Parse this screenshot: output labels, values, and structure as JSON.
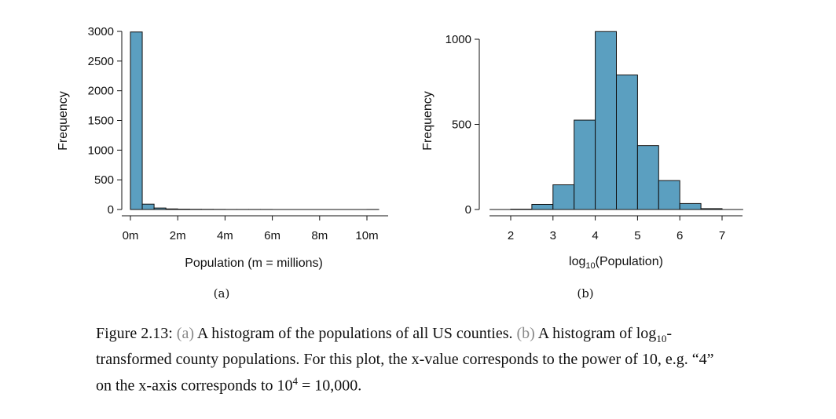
{
  "chart_data": [
    {
      "id": "a",
      "type": "bar",
      "panel_label": "(a)",
      "xlabel": "Population (m = millions)",
      "ylabel": "Frequency",
      "bar_color": "#5b9fc0",
      "bin_width": 0.5,
      "xlim": [
        0,
        10.5
      ],
      "ylim": [
        0,
        3000
      ],
      "x_ticks": [
        0,
        2,
        4,
        6,
        8,
        10
      ],
      "x_tick_labels": [
        "0m",
        "2m",
        "4m",
        "6m",
        "8m",
        "10m"
      ],
      "y_ticks": [
        0,
        500,
        1000,
        1500,
        2000,
        2500,
        3000
      ],
      "y_tick_labels": [
        "0",
        "500",
        "1000",
        "1500",
        "2000",
        "2500",
        "3000"
      ],
      "bins_start": [
        0,
        0.5,
        1.0,
        1.5,
        2.0,
        2.5,
        3.0,
        3.5,
        4.0,
        4.5,
        5.0,
        5.5,
        6.0,
        6.5,
        7.0,
        7.5,
        8.0,
        8.5,
        9.0,
        9.5,
        10.0
      ],
      "values": [
        2990,
        90,
        25,
        10,
        6,
        4,
        3,
        2,
        1,
        1,
        1,
        1,
        0,
        0,
        0,
        0,
        0,
        0,
        0,
        0,
        1
      ]
    },
    {
      "id": "b",
      "type": "bar",
      "panel_label": "(b)",
      "xlabel_main": "log",
      "xlabel_sub": "10",
      "xlabel_rest": "(Population)",
      "ylabel": "Frequency",
      "bar_color": "#5b9fc0",
      "bin_width": 0.5,
      "xlim": [
        1.5,
        7.5
      ],
      "ylim": [
        0,
        1000
      ],
      "x_ticks": [
        2,
        3,
        4,
        5,
        6,
        7
      ],
      "x_tick_labels": [
        "2",
        "3",
        "4",
        "5",
        "6",
        "7"
      ],
      "y_ticks": [
        0,
        500,
        1000
      ],
      "y_tick_labels": [
        "0",
        "500",
        "1000"
      ],
      "bins_start": [
        1.5,
        2.0,
        2.5,
        3.0,
        3.5,
        4.0,
        4.5,
        5.0,
        5.5,
        6.0,
        6.5,
        7.0
      ],
      "values": [
        0,
        2,
        30,
        145,
        525,
        1045,
        790,
        375,
        170,
        35,
        5,
        0
      ]
    }
  ],
  "caption": {
    "figure_label": "Figure 2.13:",
    "a_ref": "(a)",
    "a_text": "A histogram of the populations of all US counties.",
    "b_ref": "(b)",
    "b_text": "A histogram of",
    "log_word": "log",
    "log_sub": "10",
    "b_text_2": "-transformed county populations. For this plot, the x-value corresponds to the power of 10, e.g. “4” on the x-axis corresponds to 10",
    "exp": "4",
    "tail": " = 10,000."
  }
}
